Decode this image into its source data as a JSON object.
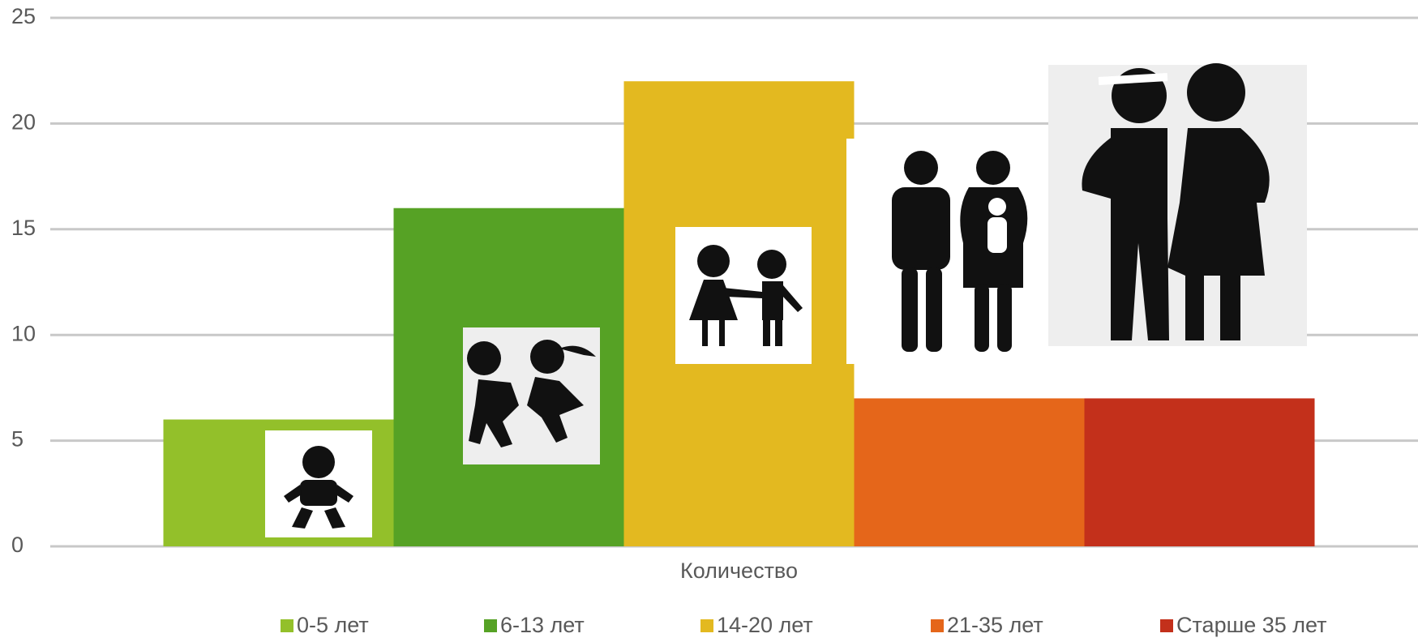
{
  "chart_data": {
    "type": "bar",
    "categories": [
      "Количество"
    ],
    "series": [
      {
        "name": "0-5 лет",
        "color": "#93c02a",
        "values": [
          6
        ]
      },
      {
        "name": "6-13 лет",
        "color": "#56a225",
        "values": [
          16
        ]
      },
      {
        "name": "14-20 лет",
        "color": "#e3b920",
        "values": [
          22
        ]
      },
      {
        "name": "21-35 лет",
        "color": "#e5661a",
        "values": [
          7
        ]
      },
      {
        "name": "Старше 35 лет",
        "color": "#c3301b",
        "values": [
          7
        ]
      }
    ],
    "ylim": [
      0,
      25
    ],
    "yticks": [
      0,
      5,
      10,
      15,
      20,
      25
    ],
    "grid": true,
    "legend": "bottom"
  }
}
